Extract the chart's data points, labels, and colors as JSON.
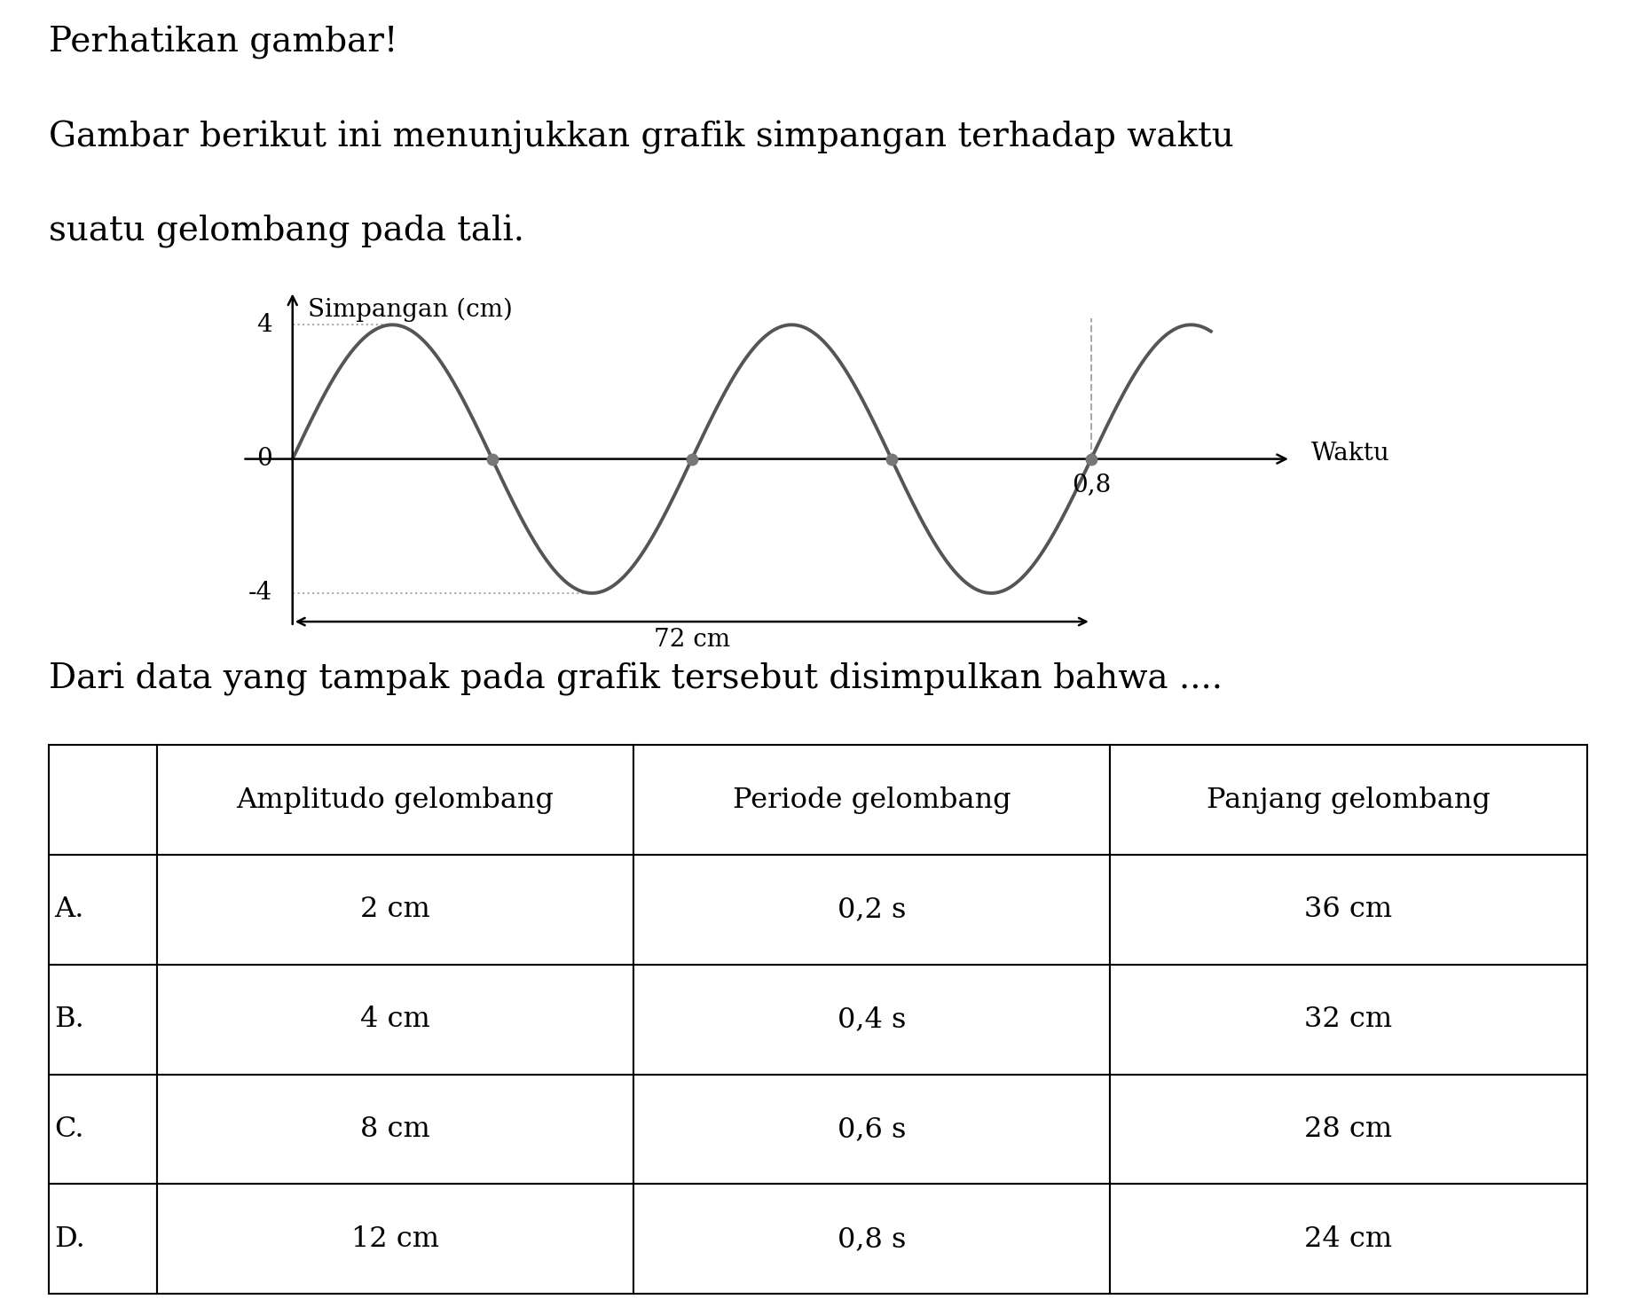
{
  "title_line1": "Perhatikan gambar!",
  "title_line2_part1": "Gambar berikut ini menunjukkan grafik simpangan terhadap waktu",
  "title_line2_part2": "suatu gelombang pada tali.",
  "question_text": "Dari data yang tampak pada grafik tersebut disimpulkan bahwa ....",
  "wave_amplitude": 4,
  "wave_color": "#555555",
  "wave_linewidth": 2.8,
  "x_label": "Waktu",
  "y_label": "Simpangan (cm)",
  "arrow_label": "72 cm",
  "table_headers": [
    "",
    "Amplitudo gelombang",
    "Periode gelombang",
    "Panjang gelombang"
  ],
  "table_rows": [
    [
      "A.",
      "2 cm",
      "0,2 s",
      "36 cm"
    ],
    [
      "B.",
      "4 cm",
      "0,4 s",
      "32 cm"
    ],
    [
      "C.",
      "8 cm",
      "0,6 s",
      "28 cm"
    ],
    [
      "D.",
      "12 cm",
      "0,8 s",
      "24 cm"
    ]
  ],
  "bg_color": "#ffffff",
  "text_color": "#000000",
  "dot_color": "#777777",
  "dashed_color": "#aaaaaa",
  "axis_color": "#000000",
  "font_size_title": 28,
  "font_size_axis": 20,
  "font_size_tick": 20,
  "font_size_question": 28,
  "font_size_table": 23
}
